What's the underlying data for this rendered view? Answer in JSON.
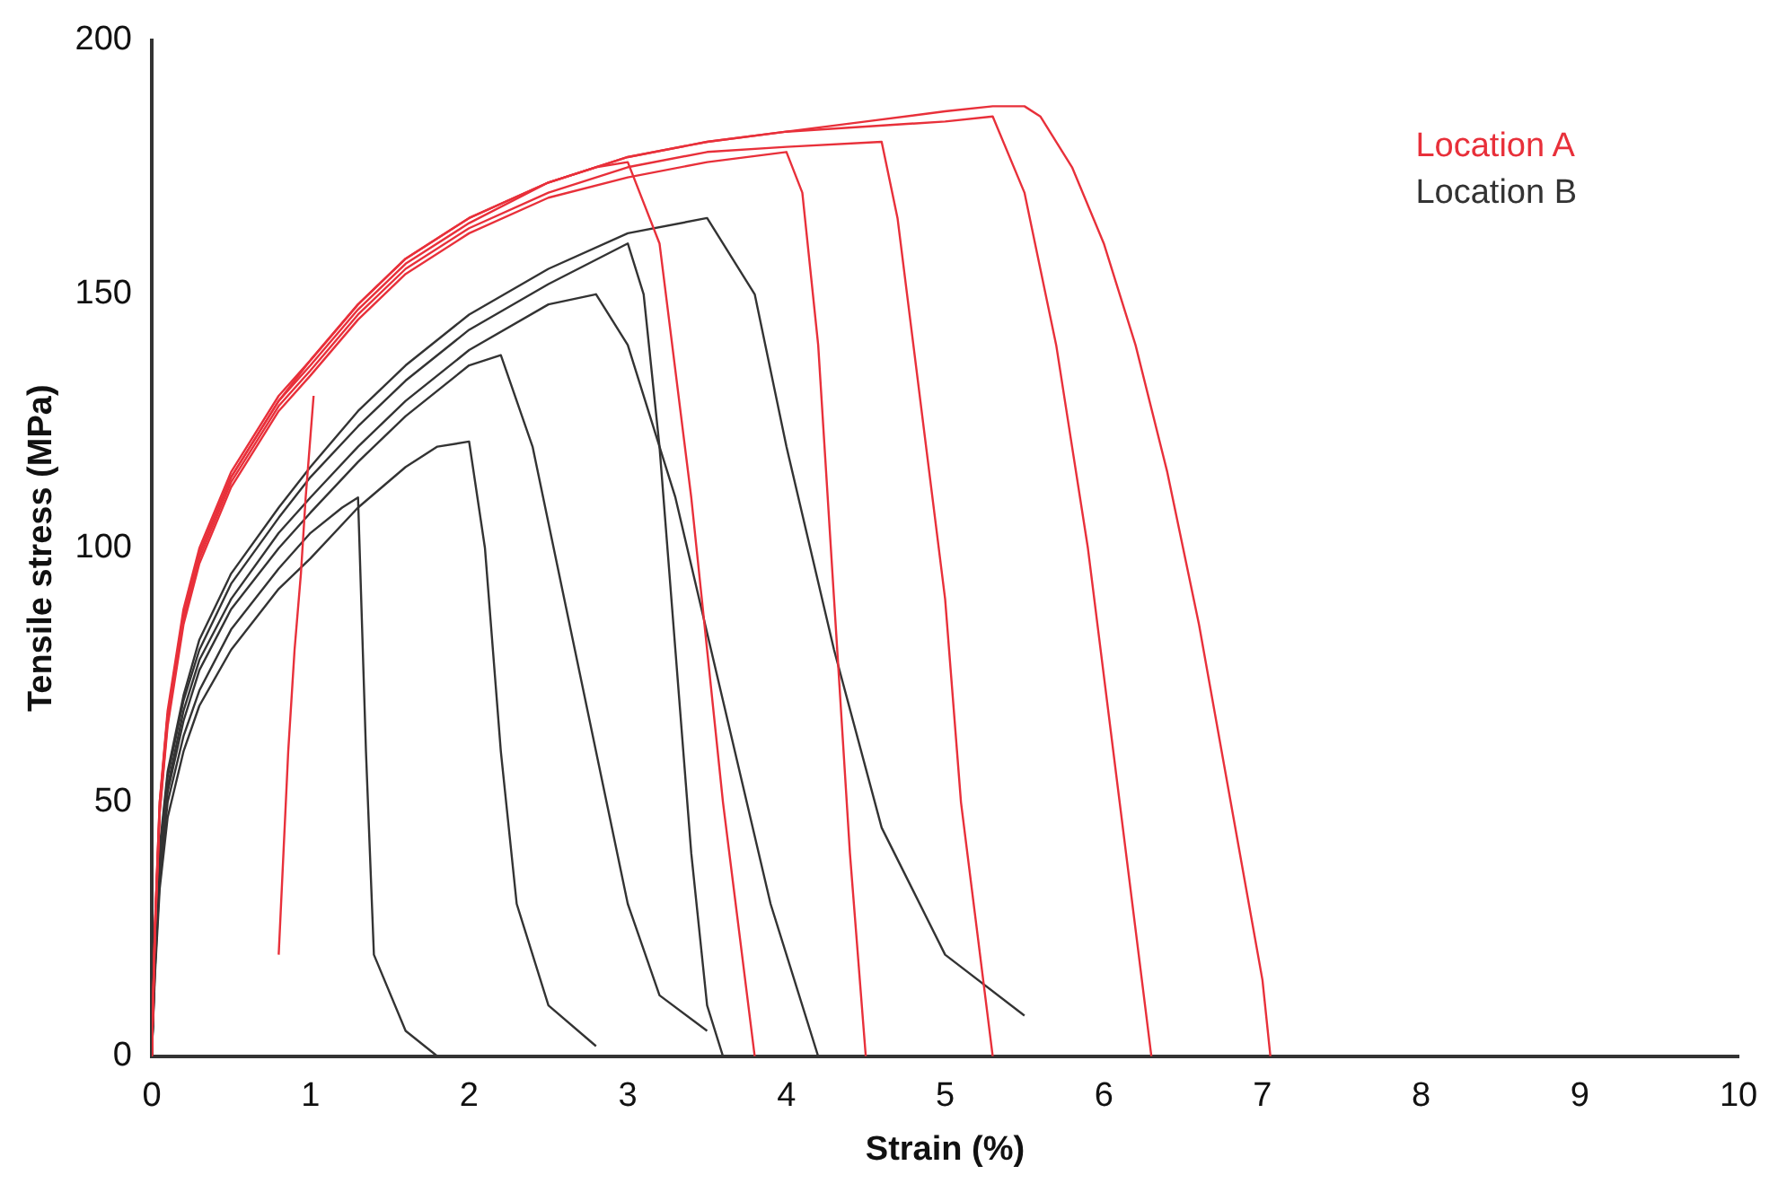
{
  "chart_data": {
    "type": "line",
    "xlabel": "Strain (%)",
    "ylabel": "Tensile stress (MPa)",
    "xlim": [
      0,
      10
    ],
    "ylim": [
      0,
      200
    ],
    "xticks": [
      0,
      1,
      2,
      3,
      4,
      5,
      6,
      7,
      8,
      9,
      10
    ],
    "yticks": [
      0,
      50,
      100,
      150,
      200
    ],
    "grid": false,
    "legend": "top right",
    "marker": "none",
    "line_style": "solid",
    "series": [
      {
        "name": "Location A",
        "color": "#e8303a",
        "x": [
          0,
          0.02,
          0.05,
          0.1,
          0.2,
          0.3,
          0.5,
          0.8,
          1,
          1.3,
          1.6,
          2,
          2.5,
          3,
          3.5,
          4,
          4.5,
          5,
          5.3,
          5.5,
          5.6,
          5.8,
          6,
          6.2,
          6.4,
          6.6,
          6.8,
          7,
          7.05
        ],
        "values": [
          0,
          25,
          50,
          68,
          88,
          100,
          115,
          130,
          137,
          148,
          157,
          165,
          172,
          177,
          180,
          182,
          184,
          186,
          187,
          187,
          185,
          175,
          160,
          140,
          115,
          85,
          50,
          15,
          0
        ]
      },
      {
        "color": "#e8303a",
        "x": [
          0,
          0.02,
          0.05,
          0.1,
          0.2,
          0.3,
          0.5,
          0.8,
          1,
          1.3,
          1.6,
          2,
          2.5,
          3,
          3.5,
          4,
          4.1,
          4.2,
          4.3,
          4.4,
          4.5
        ],
        "values": [
          0,
          24,
          48,
          65,
          85,
          97,
          112,
          127,
          134,
          145,
          154,
          162,
          169,
          173,
          176,
          178,
          170,
          140,
          90,
          40,
          0
        ]
      },
      {
        "color": "#e8303a",
        "x": [
          0,
          0.02,
          0.05,
          0.1,
          0.2,
          0.3,
          0.5,
          0.8,
          1,
          1.3,
          1.6,
          2,
          2.5,
          2.8,
          3,
          3.2,
          3.4,
          3.6,
          3.8
        ],
        "values": [
          0,
          26,
          50,
          67,
          87,
          99,
          114,
          129,
          136,
          147,
          156,
          164,
          172,
          175,
          176,
          160,
          110,
          50,
          0
        ]
      },
      {
        "color": "#e8303a",
        "x": [
          0,
          0.02,
          0.05,
          0.1,
          0.2,
          0.3,
          0.5,
          0.8,
          1,
          1.3,
          1.6,
          2,
          2.5,
          3,
          3.5,
          4,
          4.5,
          5,
          5.3,
          5.5,
          5.7,
          5.9,
          6.1,
          6.3
        ],
        "values": [
          0,
          25,
          49,
          67,
          87,
          99,
          114,
          129,
          137,
          148,
          157,
          165,
          172,
          177,
          180,
          182,
          183,
          184,
          185,
          170,
          140,
          100,
          50,
          0
        ]
      },
      {
        "color": "#e8303a",
        "x": [
          0,
          0.02,
          0.05,
          0.1,
          0.2,
          0.3,
          0.5,
          0.8,
          1,
          1.3,
          1.6,
          2,
          2.5,
          3,
          3.5,
          4,
          4.6,
          4.7,
          4.8,
          5,
          5.1,
          5.3
        ],
        "values": [
          0,
          24,
          48,
          66,
          86,
          98,
          113,
          128,
          135,
          146,
          155,
          163,
          170,
          175,
          178,
          179,
          180,
          165,
          140,
          90,
          50,
          0
        ]
      },
      {
        "color": "#e8303a",
        "x": [
          0.8,
          0.83,
          0.86,
          0.9,
          0.94,
          0.97,
          1,
          1.02
        ],
        "values": [
          20,
          40,
          60,
          80,
          95,
          110,
          122,
          130
        ]
      },
      {
        "name": "Location B",
        "color": "#333333",
        "x": [
          0,
          0.02,
          0.05,
          0.1,
          0.2,
          0.3,
          0.5,
          0.8,
          1,
          1.3,
          1.6,
          2,
          2.5,
          3,
          3.1,
          3.2,
          3.3,
          3.4,
          3.5,
          3.6
        ],
        "values": [
          0,
          20,
          40,
          55,
          70,
          80,
          93,
          106,
          114,
          124,
          133,
          143,
          152,
          160,
          150,
          120,
          80,
          40,
          10,
          0
        ]
      },
      {
        "color": "#333333",
        "x": [
          0,
          0.02,
          0.05,
          0.1,
          0.2,
          0.3,
          0.5,
          0.8,
          1,
          1.3,
          1.6,
          2,
          2.2,
          2.4,
          2.6,
          2.8,
          3,
          3.2,
          3.5
        ],
        "values": [
          0,
          18,
          37,
          52,
          66,
          76,
          88,
          100,
          107,
          117,
          126,
          136,
          138,
          120,
          90,
          60,
          30,
          12,
          5
        ]
      },
      {
        "color": "#333333",
        "x": [
          0,
          0.02,
          0.05,
          0.1,
          0.2,
          0.3,
          0.5,
          0.8,
          1,
          1.2,
          1.3,
          1.35,
          1.4,
          1.6,
          1.8
        ],
        "values": [
          0,
          17,
          35,
          50,
          63,
          72,
          84,
          96,
          103,
          108,
          110,
          60,
          20,
          5,
          0
        ]
      },
      {
        "color": "#333333",
        "x": [
          0,
          0.02,
          0.05,
          0.1,
          0.2,
          0.3,
          0.5,
          0.8,
          1,
          1.3,
          1.6,
          2,
          2.5,
          2.8,
          3,
          3.3,
          3.6,
          3.9,
          4.2
        ],
        "values": [
          0,
          19,
          38,
          53,
          68,
          78,
          90,
          103,
          110,
          120,
          129,
          139,
          148,
          150,
          140,
          110,
          70,
          30,
          0
        ]
      },
      {
        "color": "#333333",
        "x": [
          0,
          0.02,
          0.05,
          0.1,
          0.2,
          0.3,
          0.5,
          0.8,
          1,
          1.3,
          1.6,
          2,
          2.5,
          3,
          3.5,
          3.8,
          4,
          4.3,
          4.6,
          5,
          5.5
        ],
        "values": [
          0,
          21,
          41,
          56,
          71,
          82,
          95,
          108,
          116,
          127,
          136,
          146,
          155,
          162,
          165,
          150,
          120,
          80,
          45,
          20,
          8
        ]
      },
      {
        "color": "#333333",
        "x": [
          0,
          0.02,
          0.05,
          0.1,
          0.2,
          0.3,
          0.5,
          0.8,
          1,
          1.3,
          1.6,
          1.8,
          2,
          2.1,
          2.2,
          2.3,
          2.5,
          2.8
        ],
        "values": [
          0,
          16,
          33,
          47,
          60,
          69,
          80,
          92,
          98,
          108,
          116,
          120,
          121,
          100,
          60,
          30,
          10,
          2
        ]
      }
    ]
  }
}
